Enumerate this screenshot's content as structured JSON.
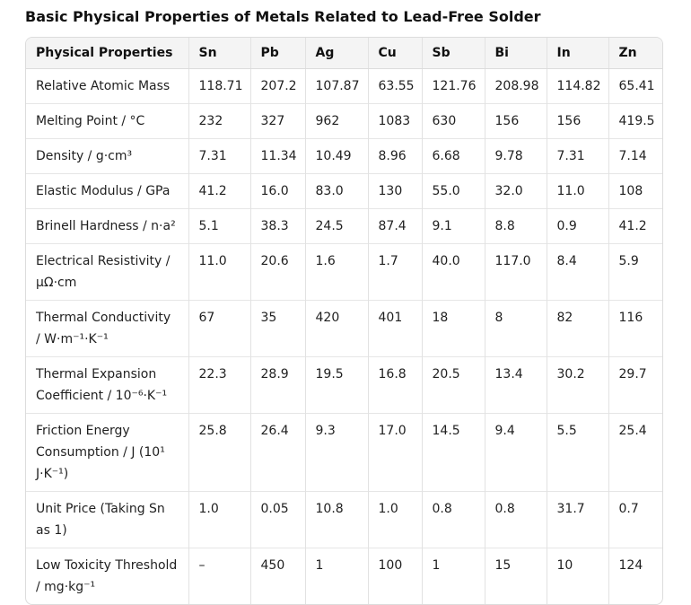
{
  "title": "Basic Physical Properties of Metals Related to Lead-Free Solder",
  "table": {
    "headers": [
      "Physical Properties",
      "Sn",
      "Pb",
      "Ag",
      "Cu",
      "Sb",
      "Bi",
      "In",
      "Zn"
    ],
    "rows": [
      [
        "Relative Atomic Mass",
        "118.71",
        "207.2",
        "107.87",
        "63.55",
        "121.76",
        "208.98",
        "114.82",
        "65.41"
      ],
      [
        "Melting Point / °C",
        "232",
        "327",
        "962",
        "1083",
        "630",
        "156",
        "156",
        "419.5"
      ],
      [
        "Density / g·cm³",
        "7.31",
        "11.34",
        "10.49",
        "8.96",
        "6.68",
        "9.78",
        "7.31",
        "7.14"
      ],
      [
        "Elastic Modulus / GPa",
        "41.2",
        "16.0",
        "83.0",
        "130",
        "55.0",
        "32.0",
        "11.0",
        "108"
      ],
      [
        "Brinell Hardness / n·a²",
        "5.1",
        "38.3",
        "24.5",
        "87.4",
        "9.1",
        "8.8",
        "0.9",
        "41.2"
      ],
      [
        "Electrical Resistivity / μΩ·cm",
        "11.0",
        "20.6",
        "1.6",
        "1.7",
        "40.0",
        "117.0",
        "8.4",
        "5.9"
      ],
      [
        "Thermal Conductivity / W·m⁻¹·K⁻¹",
        "67",
        "35",
        "420",
        "401",
        "18",
        "8",
        "82",
        "116"
      ],
      [
        "Thermal Expansion Coefficient / 10⁻⁶·K⁻¹",
        "22.3",
        "28.9",
        "19.5",
        "16.8",
        "20.5",
        "13.4",
        "30.2",
        "29.7"
      ],
      [
        "Friction Energy Consumption / J (10¹ J·K⁻¹)",
        "25.8",
        "26.4",
        "9.3",
        "17.0",
        "14.5",
        "9.4",
        "5.5",
        "25.4"
      ],
      [
        "Unit Price (Taking Sn as 1)",
        "1.0",
        "0.05",
        "10.8",
        "1.0",
        "0.8",
        "0.8",
        "31.7",
        "0.7"
      ],
      [
        "Low Toxicity Threshold / mg·kg⁻¹",
        "–",
        "450",
        "1",
        "100",
        "1",
        "15",
        "10",
        "124"
      ]
    ]
  }
}
